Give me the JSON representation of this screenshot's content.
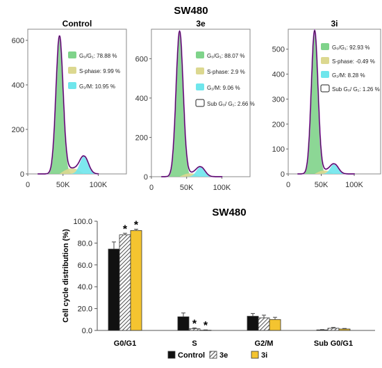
{
  "title_top": "SW480",
  "chart_data": [
    {
      "type": "area",
      "title": "Control",
      "xlabel": "",
      "ylabel": "",
      "x_ticks": [
        "0",
        "50K",
        "100K"
      ],
      "y_ticks": [
        0,
        200,
        400,
        600
      ],
      "xlim": [
        0,
        140000
      ],
      "ylim": [
        0,
        650
      ],
      "peaks": {
        "g1": {
          "x": 45000,
          "y": 620
        },
        "g2": {
          "x": 80000,
          "y": 80
        }
      },
      "legend": [
        {
          "label": "G₀/G₁: 78.88 %",
          "color": "#7fd38a"
        },
        {
          "label": "S-phase: 9.99 %",
          "color": "#dcd890"
        },
        {
          "label": "G₂/M: 10.95 %",
          "color": "#6fe6ec"
        }
      ]
    },
    {
      "type": "area",
      "title": "3e",
      "xlabel": "",
      "ylabel": "",
      "x_ticks": [
        "0",
        "50K",
        "100K"
      ],
      "y_ticks": [
        0,
        200,
        400,
        600
      ],
      "xlim": [
        0,
        140000
      ],
      "ylim": [
        0,
        750
      ],
      "peaks": {
        "g1": {
          "x": 40000,
          "y": 740
        },
        "g2": {
          "x": 70000,
          "y": 50
        }
      },
      "legend": [
        {
          "label": "G₀/G₁: 88.07 %",
          "color": "#7fd38a"
        },
        {
          "label": "S-phase: 2.9 %",
          "color": "#dcd890"
        },
        {
          "label": "G₂/M: 9.06 %",
          "color": "#6fe6ec"
        },
        {
          "label": "Sub G₀/ G₁: 2.66 %",
          "color": "#ffffff"
        }
      ]
    },
    {
      "type": "area",
      "title": "3i",
      "xlabel": "",
      "ylabel": "",
      "x_ticks": [
        "0",
        "50K",
        "100K"
      ],
      "y_ticks": [
        0,
        100,
        200,
        300,
        400,
        500
      ],
      "xlim": [
        0,
        140000
      ],
      "ylim": [
        0,
        580
      ],
      "peaks": {
        "g1": {
          "x": 40000,
          "y": 575
        },
        "g2": {
          "x": 70000,
          "y": 40
        }
      },
      "legend": [
        {
          "label": "G₀/G₁: 92.93 %",
          "color": "#7fd38a"
        },
        {
          "label": "S-phase: -0.49 %",
          "color": "#dcd890"
        },
        {
          "label": "G₂/M: 8.28 %",
          "color": "#6fe6ec"
        },
        {
          "label": "Sub G₀/ G₁: 1.26 %",
          "color": "#ffffff"
        }
      ]
    },
    {
      "type": "bar",
      "title": "SW480",
      "xlabel": "",
      "ylabel": "Cell cycle distribution (%)",
      "ylim": [
        0,
        100
      ],
      "y_ticks": [
        "0.0",
        "20.0",
        "40.0",
        "60.0",
        "80.0",
        "100.0"
      ],
      "categories": [
        "G0/G1",
        "S",
        "G2/M",
        "Sub G0/G1"
      ],
      "series": [
        {
          "name": "Control",
          "values": [
            74.5,
            12.5,
            13.0,
            0.5
          ],
          "errors": [
            6.5,
            3.5,
            2.5,
            0.3
          ]
        },
        {
          "name": "3e",
          "values": [
            87.5,
            1.5,
            11.5,
            2.0
          ],
          "errors": [
            1.5,
            0.8,
            2.5,
            0.8
          ]
        },
        {
          "name": "3i",
          "values": [
            91.5,
            0.2,
            10.0,
            1.3
          ],
          "errors": [
            1.2,
            0.3,
            2.0,
            0.5
          ]
        }
      ],
      "significance": [
        [
          "",
          "*",
          "*"
        ],
        [
          "",
          "*",
          "*"
        ],
        [
          "",
          "",
          ""
        ],
        [
          "",
          "",
          ""
        ]
      ],
      "series_colors": [
        "#111111",
        "#ffffff",
        "#f4c430"
      ],
      "legend_position": "bottom"
    }
  ]
}
